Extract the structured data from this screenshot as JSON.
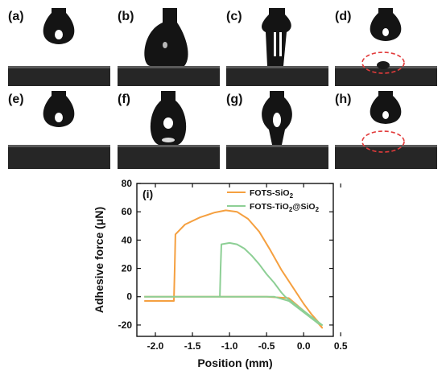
{
  "panels": [
    {
      "label": "(a)",
      "state": "pendant-above"
    },
    {
      "label": "(b)",
      "state": "contact-spread"
    },
    {
      "label": "(c)",
      "state": "stretched-neck"
    },
    {
      "label": "(d)",
      "state": "detached-residue"
    },
    {
      "label": "(e)",
      "state": "pendant-above"
    },
    {
      "label": "(f)",
      "state": "contact-small"
    },
    {
      "label": "(g)",
      "state": "contact-narrow"
    },
    {
      "label": "(h)",
      "state": "detached-clean"
    }
  ],
  "colors": {
    "fots_sio2": "#f5a040",
    "fots_tio2_sio2": "#8dcf95",
    "dashed_circle": "#e23b3b"
  },
  "chart_data": {
    "type": "line",
    "panel_label": "(i)",
    "xlabel": "Position (mm)",
    "ylabel": "Adhesive force (μN)",
    "xlim": [
      -2.25,
      0.4
    ],
    "ylim": [
      -28,
      80
    ],
    "xticks": [
      "-2.0",
      "-1.5",
      "-1.0",
      "-0.5",
      "0.0",
      "0.5"
    ],
    "xtick_values": [
      -2.0,
      -1.5,
      -1.0,
      -0.5,
      0.0,
      0.5
    ],
    "yticks": [
      "-20",
      "0",
      "20",
      "40",
      "60",
      "80"
    ],
    "ytick_values": [
      -20,
      0,
      20,
      40,
      60,
      80
    ],
    "legend_position": "top-right",
    "series": [
      {
        "name": "FOTS-SiO",
        "name_sub": "2",
        "name_rest": "",
        "color_key": "fots_sio2",
        "x": [
          -2.15,
          -1.9,
          -1.75,
          -1.74,
          -1.73,
          -1.6,
          -1.4,
          -1.2,
          -1.05,
          -0.9,
          -0.75,
          -0.6,
          -0.45,
          -0.3,
          -0.15,
          0.0,
          0.1,
          0.2,
          0.25,
          0.2,
          0.0,
          -0.2,
          -0.5,
          -1.0,
          -1.5,
          -2.0,
          -2.15
        ],
        "y": [
          -3,
          -3,
          -3,
          20,
          44,
          51,
          56,
          59.5,
          61,
          60,
          55,
          46,
          33,
          19,
          7,
          -5,
          -12,
          -18,
          -22,
          -19,
          -10,
          -1,
          0,
          0,
          0,
          0,
          0
        ]
      },
      {
        "name": "FOTS-TiO",
        "name_sub": "2",
        "name_rest": "@SiO",
        "name_sub2": "2",
        "color_key": "fots_tio2_sio2",
        "x": [
          -2.15,
          -1.8,
          -1.5,
          -1.13,
          -1.12,
          -1.11,
          -1.0,
          -0.9,
          -0.8,
          -0.7,
          -0.6,
          -0.5,
          -0.4,
          -0.3,
          -0.25,
          -0.2,
          -0.15,
          -0.1,
          0.0,
          0.1,
          0.2,
          0.25,
          0.2,
          0.0,
          -0.2,
          -0.4,
          -0.8,
          -1.2,
          -1.6,
          -2.15
        ],
        "y": [
          0,
          0,
          0,
          0,
          20,
          37,
          38,
          37,
          34,
          29,
          23,
          16,
          10,
          3,
          0,
          -2,
          -4,
          -6,
          -10,
          -14,
          -18,
          -20,
          -19,
          -11,
          -3,
          0,
          0,
          0,
          0,
          0
        ]
      }
    ]
  }
}
